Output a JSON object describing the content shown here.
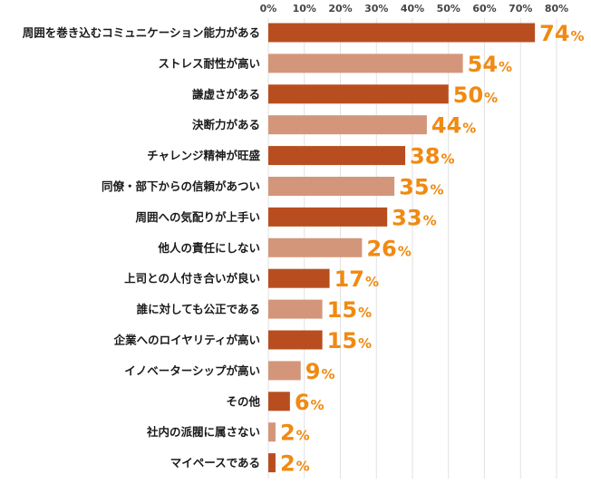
{
  "chart_data": {
    "type": "bar",
    "orientation": "horizontal",
    "title": "",
    "xlabel": "",
    "ylabel": "",
    "xlim": [
      0,
      80
    ],
    "ticks": [
      "0%",
      "10%",
      "20%",
      "30%",
      "40%",
      "50%",
      "60%",
      "70%",
      "80%"
    ],
    "grid": true,
    "categories": [
      "周囲を巻き込むコミュニケーション能力がある",
      "ストレス耐性が高い",
      "謙虚さがある",
      "決断力がある",
      "チャレンジ精神が旺盛",
      "同僚・部下からの信頼があつい",
      "周囲への気配りが上手い",
      "他人の責任にしない",
      "上司との人付き合いが良い",
      "誰に対しても公正である",
      "企業へのロイヤリティが高い",
      "イノベーターシップが高い",
      "その他",
      "社内の派閥に属さない",
      "マイペースである"
    ],
    "values": [
      74,
      54,
      50,
      44,
      38,
      35,
      33,
      26,
      17,
      15,
      15,
      9,
      6,
      2,
      2
    ],
    "value_suffix": "%",
    "colors": {
      "bar_dark": "#b84e1f",
      "bar_light": "#d4967a",
      "value_label": "#f08a12",
      "grid": "#e2e2e2"
    }
  }
}
